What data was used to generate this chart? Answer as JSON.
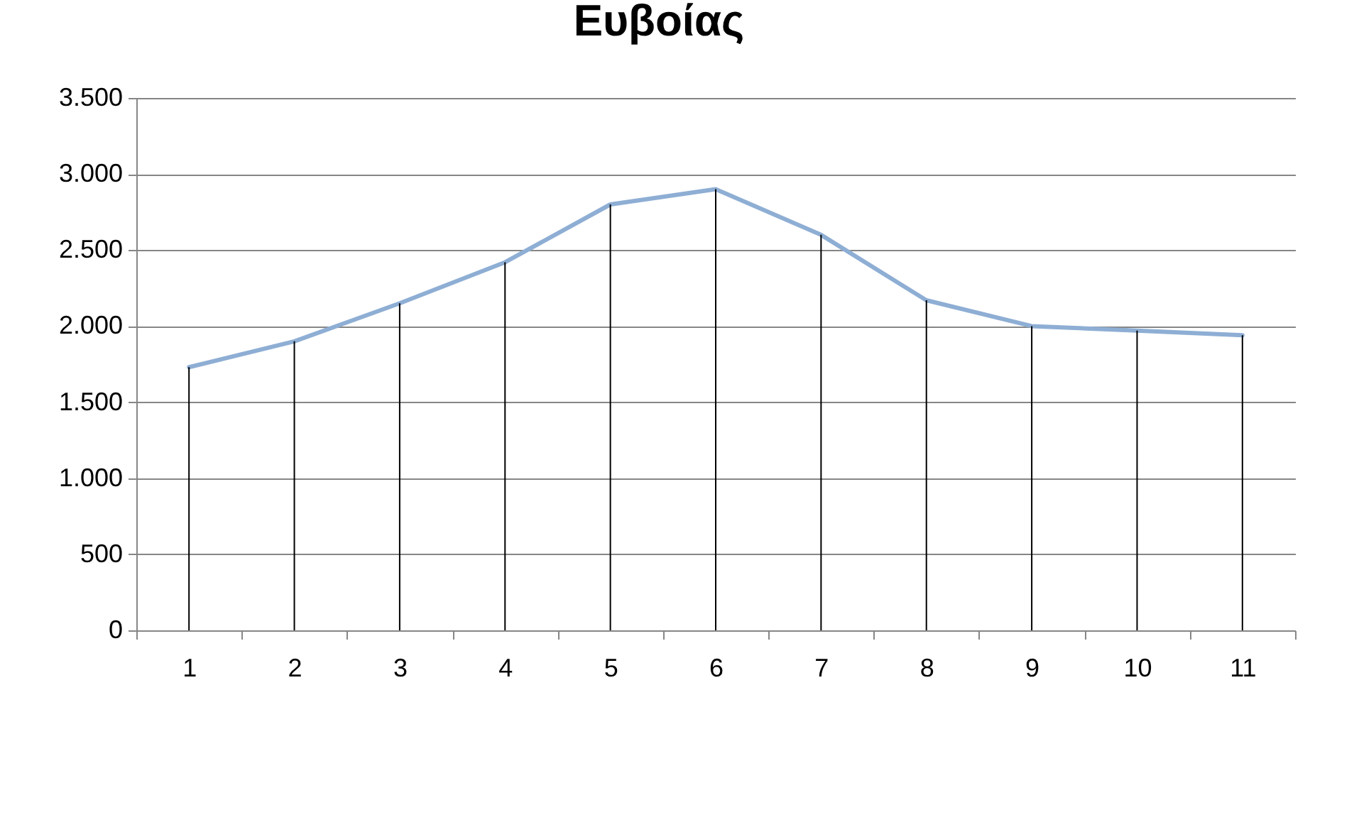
{
  "chart_data": {
    "type": "line",
    "title": "Ευβοίας",
    "categories": [
      "1",
      "2",
      "3",
      "4",
      "5",
      "6",
      "7",
      "8",
      "9",
      "10",
      "11"
    ],
    "series": [
      {
        "color": "#8eaed4",
        "values": [
          1730,
          1900,
          2150,
          2420,
          2800,
          2900,
          2600,
          2170,
          2000,
          1970,
          1940
        ]
      },
      {
        "type": "bar",
        "color": "#000000",
        "values": [
          1730,
          1900,
          2150,
          2420,
          2800,
          2900,
          2600,
          2170,
          2000,
          1970,
          1940
        ]
      }
    ],
    "ylim": [
      0,
      3500
    ],
    "yticks": [
      {
        "value": 0,
        "label": "0"
      },
      {
        "value": 500,
        "label": "500"
      },
      {
        "value": 1000,
        "label": "1.000"
      },
      {
        "value": 1500,
        "label": "1.500"
      },
      {
        "value": 2000,
        "label": "2.000"
      },
      {
        "value": 2500,
        "label": "2.500"
      },
      {
        "value": 3000,
        "label": "3.000"
      },
      {
        "value": 3500,
        "label": "3.500"
      }
    ],
    "grid": "y"
  }
}
